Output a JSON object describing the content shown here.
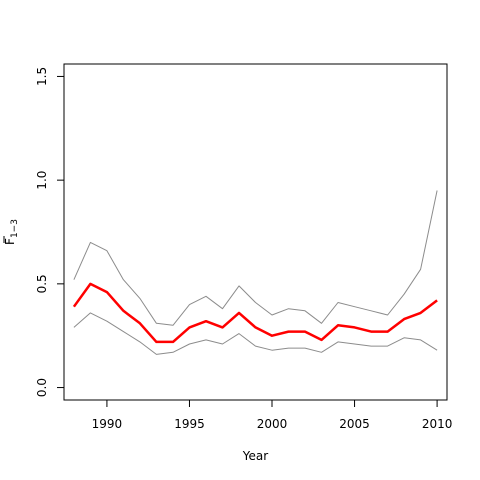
{
  "chart_data": {
    "type": "line",
    "title": "",
    "xlabel": "Year",
    "ylabel": "F",
    "ylabel_bar": true,
    "ylabel_subscript": "1−3",
    "xlim": [
      1987.4,
      2010.6
    ],
    "ylim": [
      -0.06,
      1.56
    ],
    "x_ticks": [
      1990,
      1995,
      2000,
      2005,
      2010
    ],
    "y_ticks": [
      0.0,
      0.5,
      1.0,
      1.5
    ],
    "y_tick_labels": [
      "0.0",
      "0.5",
      "1.0",
      "1.5"
    ],
    "grid": false,
    "legend": "none",
    "x": [
      1988,
      1989,
      1990,
      1991,
      1992,
      1993,
      1994,
      1995,
      1996,
      1997,
      1998,
      1999,
      2000,
      2001,
      2002,
      2003,
      2004,
      2005,
      2006,
      2007,
      2008,
      2009,
      2010
    ],
    "series": [
      {
        "role": "upper",
        "color": "#8c8c8c",
        "width": 1,
        "values": [
          0.52,
          0.7,
          0.66,
          0.52,
          0.43,
          0.31,
          0.3,
          0.4,
          0.44,
          0.38,
          0.49,
          0.41,
          0.35,
          0.38,
          0.37,
          0.31,
          0.41,
          0.39,
          0.37,
          0.35,
          0.45,
          0.57,
          0.95
        ]
      },
      {
        "role": "estimate",
        "color": "#ff0000",
        "width": 2.5,
        "values": [
          0.39,
          0.5,
          0.46,
          0.37,
          0.31,
          0.22,
          0.22,
          0.29,
          0.32,
          0.29,
          0.36,
          0.29,
          0.25,
          0.27,
          0.27,
          0.23,
          0.3,
          0.29,
          0.27,
          0.27,
          0.33,
          0.36,
          0.42
        ]
      },
      {
        "role": "lower",
        "color": "#8c8c8c",
        "width": 1,
        "values": [
          0.29,
          0.36,
          0.32,
          0.27,
          0.22,
          0.16,
          0.17,
          0.21,
          0.23,
          0.21,
          0.26,
          0.2,
          0.18,
          0.19,
          0.19,
          0.17,
          0.22,
          0.21,
          0.2,
          0.2,
          0.24,
          0.23,
          0.18
        ]
      }
    ]
  }
}
